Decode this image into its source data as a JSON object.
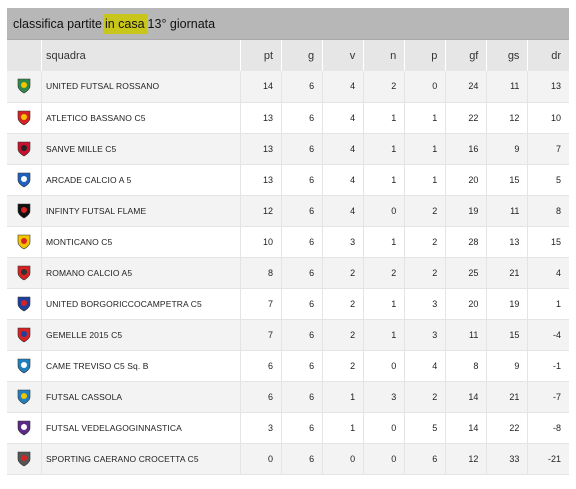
{
  "title": {
    "prefix": "classifica partite ",
    "highlight": "in casa",
    "suffix": " 13° giornata"
  },
  "columns": [
    "squadra",
    "pt",
    "g",
    "v",
    "n",
    "p",
    "gf",
    "gs",
    "dr"
  ],
  "rows": [
    {
      "team": "UNITED FUTSAL ROSSANO",
      "pt": "14",
      "g": "6",
      "v": "4",
      "n": "2",
      "p": "0",
      "gf": "24",
      "gs": "11",
      "dr": "13",
      "crest": "crest-icon",
      "c1": "#2f8a4a",
      "c2": "#f2c500"
    },
    {
      "team": "ATLETICO BASSANO C5",
      "pt": "13",
      "g": "6",
      "v": "4",
      "n": "1",
      "p": "1",
      "gf": "22",
      "gs": "12",
      "dr": "10",
      "crest": "crest-icon",
      "c1": "#d62222",
      "c2": "#f2c500"
    },
    {
      "team": "SANVE MILLE C5",
      "pt": "13",
      "g": "6",
      "v": "4",
      "n": "1",
      "p": "1",
      "gf": "16",
      "gs": "9",
      "dr": "7",
      "crest": "crest-icon",
      "c1": "#c8102e",
      "c2": "#222222"
    },
    {
      "team": "ARCADE CALCIO A 5",
      "pt": "13",
      "g": "6",
      "v": "4",
      "n": "1",
      "p": "1",
      "gf": "20",
      "gs": "15",
      "dr": "5",
      "crest": "crest-icon",
      "c1": "#1f5fbf",
      "c2": "#ffffff"
    },
    {
      "team": "INFINTY FUTSAL FLAME",
      "pt": "12",
      "g": "6",
      "v": "4",
      "n": "0",
      "p": "2",
      "gf": "19",
      "gs": "11",
      "dr": "8",
      "crest": "crest-icon",
      "c1": "#111111",
      "c2": "#d62222"
    },
    {
      "team": "MONTICANO C5",
      "pt": "10",
      "g": "6",
      "v": "3",
      "n": "1",
      "p": "2",
      "gf": "28",
      "gs": "13",
      "dr": "15",
      "crest": "crest-icon",
      "c1": "#f2c500",
      "c2": "#d62222"
    },
    {
      "team": "ROMANO CALCIO A5",
      "pt": "8",
      "g": "6",
      "v": "2",
      "n": "2",
      "p": "2",
      "gf": "25",
      "gs": "21",
      "dr": "4",
      "crest": "crest-icon",
      "c1": "#d62222",
      "c2": "#333333"
    },
    {
      "team": "UNITED BORGORICCOCAMPETRA C5",
      "pt": "7",
      "g": "6",
      "v": "2",
      "n": "1",
      "p": "3",
      "gf": "20",
      "gs": "19",
      "dr": "1",
      "crest": "crest-icon",
      "c1": "#1f3f9f",
      "c2": "#d62222"
    },
    {
      "team": "GEMELLE 2015 C5",
      "pt": "7",
      "g": "6",
      "v": "2",
      "n": "1",
      "p": "3",
      "gf": "11",
      "gs": "15",
      "dr": "-4",
      "crest": "crest-icon",
      "c1": "#d62222",
      "c2": "#1f3f9f"
    },
    {
      "team": "CAME TREVISO C5 Sq. B",
      "pt": "6",
      "g": "6",
      "v": "2",
      "n": "0",
      "p": "4",
      "gf": "8",
      "gs": "9",
      "dr": "-1",
      "crest": "crest-icon",
      "c1": "#1f7fbf",
      "c2": "#ffffff"
    },
    {
      "team": "FUTSAL CASSOLA",
      "pt": "6",
      "g": "6",
      "v": "1",
      "n": "3",
      "p": "2",
      "gf": "14",
      "gs": "21",
      "dr": "-7",
      "crest": "crest-icon",
      "c1": "#1f7fbf",
      "c2": "#f2c500"
    },
    {
      "team": "FUTSAL VEDELAGOGINNASTICA",
      "pt": "3",
      "g": "6",
      "v": "1",
      "n": "0",
      "p": "5",
      "gf": "14",
      "gs": "22",
      "dr": "-8",
      "crest": "crest-icon",
      "c1": "#5b2a86",
      "c2": "#ffffff"
    },
    {
      "team": "SPORTING CAERANO CROCETTA C5",
      "pt": "0",
      "g": "6",
      "v": "0",
      "n": "0",
      "p": "6",
      "gf": "12",
      "gs": "33",
      "dr": "-21",
      "crest": "crest-icon",
      "c1": "#555555",
      "c2": "#d62222"
    }
  ]
}
